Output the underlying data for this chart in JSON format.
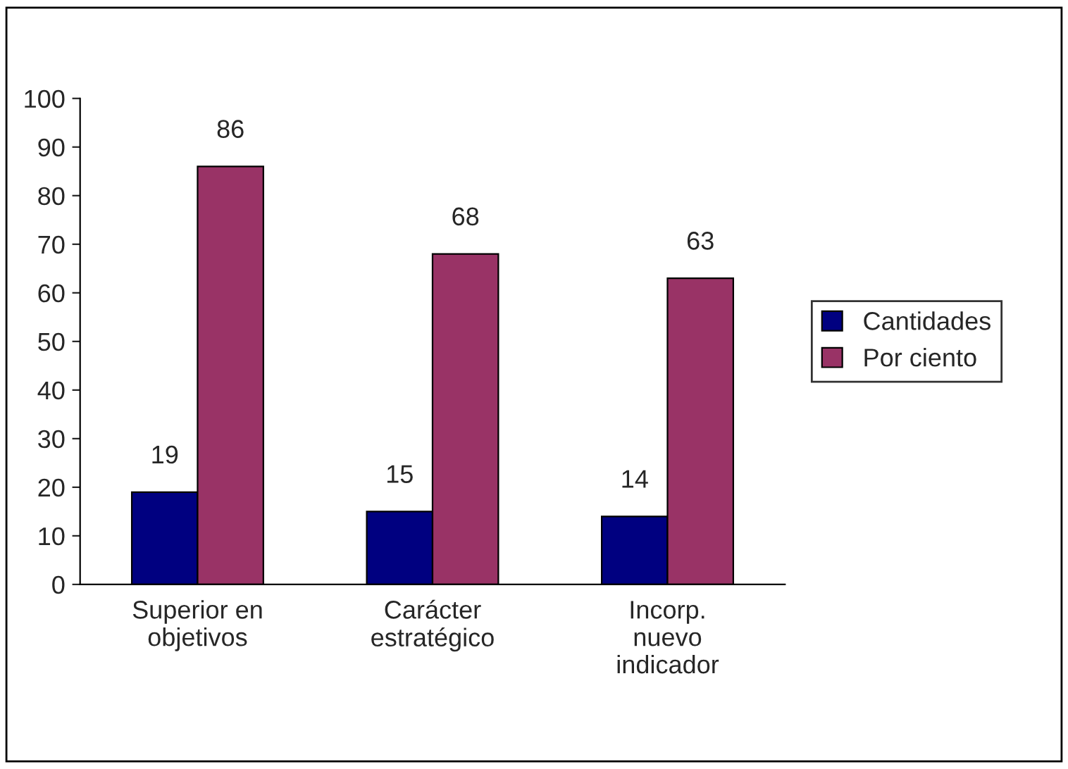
{
  "chart_data": {
    "type": "bar",
    "categories": [
      "Superior en\nobjetivos",
      "Carácter\nestratégico",
      "Incorp.\nnuevo\nindicador"
    ],
    "series": [
      {
        "name": "Cantidades",
        "color": "#000080",
        "values": [
          19,
          15,
          14
        ]
      },
      {
        "name": "Por ciento",
        "color": "#993366",
        "values": [
          86,
          68,
          63
        ]
      }
    ],
    "ylim": [
      0,
      100
    ],
    "yticks": [
      0,
      10,
      20,
      30,
      40,
      50,
      60,
      70,
      80,
      90,
      100
    ],
    "grid": false,
    "legend": "right",
    "data_labels": true
  }
}
